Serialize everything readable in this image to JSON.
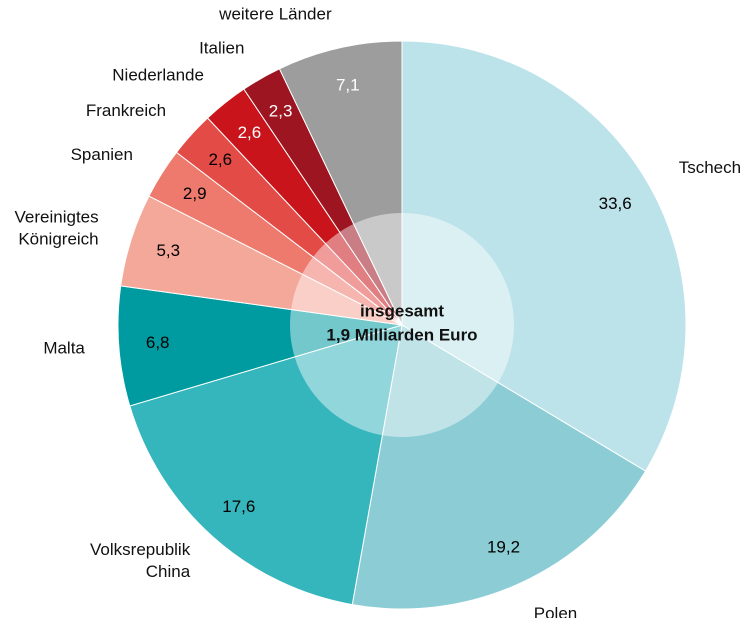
{
  "chart_data": {
    "type": "pie",
    "categories": [
      "Tschechien",
      "Polen",
      "Volksrepublik China",
      "Malta",
      "Vereinigtes Königreich",
      "Spanien",
      "Frankreich",
      "Niederlande",
      "Italien",
      "weitere Länder"
    ],
    "values": [
      33.6,
      19.2,
      17.6,
      6.8,
      5.3,
      2.9,
      2.6,
      2.6,
      2.3,
      7.1
    ],
    "value_labels": [
      "33,6",
      "19,2",
      "17,6",
      "6,8",
      "5,3",
      "2,9",
      "2,6",
      "2,6",
      "2,3",
      "7,1"
    ],
    "colors": [
      "#bde3ea",
      "#8ccdd5",
      "#35b5bc",
      "#009ba0",
      "#f4a89a",
      "#ee7a6e",
      "#e34b47",
      "#c8141a",
      "#9c1520",
      "#9d9d9d"
    ],
    "value_label_colors": [
      "#000000",
      "#000000",
      "#000000",
      "#000000",
      "#000000",
      "#000000",
      "#000000",
      "#ffffff",
      "#ffffff",
      "#ffffff"
    ],
    "center_label": [
      "insgesamt",
      "1,9 Milliarden Euro"
    ]
  }
}
